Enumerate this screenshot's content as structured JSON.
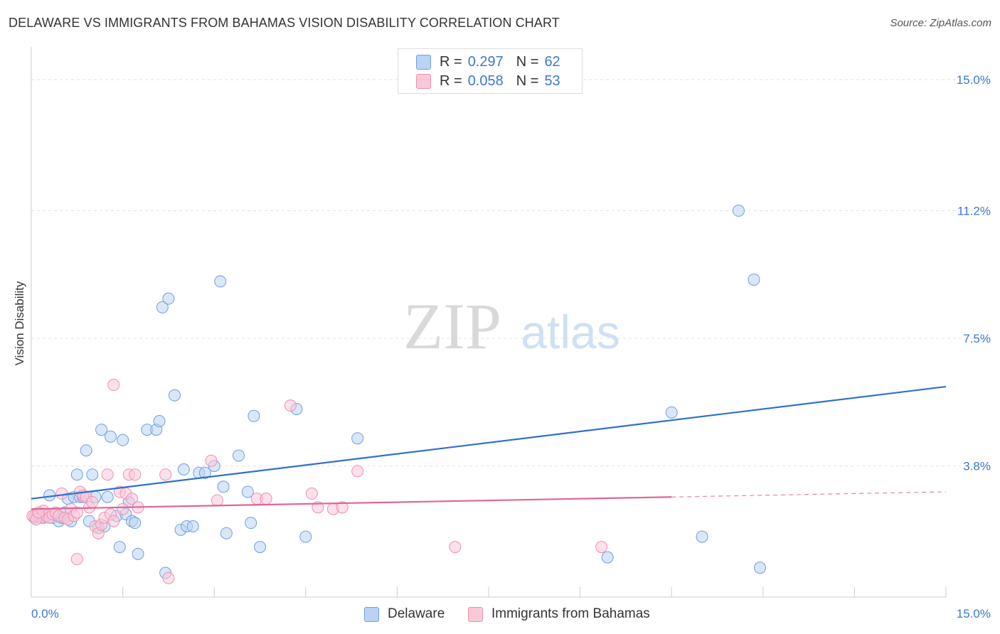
{
  "title": "DELAWARE VS IMMIGRANTS FROM BAHAMAS VISION DISABILITY CORRELATION CHART",
  "source": "Source: ZipAtlas.com",
  "watermark": {
    "zip": "ZIP",
    "atlas": "atlas"
  },
  "legend_top": [
    {
      "name": "Delaware",
      "r_label": "R =",
      "r_value": "0.297",
      "n_label": "N =",
      "n_value": "62",
      "color": "#a9c8f0"
    },
    {
      "name": "Immigrants from Bahamas",
      "r_label": "R =",
      "r_value": "0.058",
      "n_label": "N =",
      "n_value": "53",
      "color": "#f6b8cb"
    }
  ],
  "legend_bottom": {
    "series_1": "Delaware",
    "series_2": "Immigrants from Bahamas"
  },
  "chart_data": {
    "type": "scatter",
    "title": "DELAWARE VS IMMIGRANTS FROM BAHAMAS VISION DISABILITY CORRELATION CHART",
    "xlabel": "",
    "ylabel": "Vision Disability",
    "xlim": [
      0,
      15
    ],
    "ylim": [
      0,
      15.7
    ],
    "x_tick_labels": [
      "0.0%",
      "15.0%"
    ],
    "y_ticks": [
      3.8,
      7.5,
      11.2,
      15.0
    ],
    "y_tick_labels": [
      "3.8%",
      "7.5%",
      "11.2%",
      "15.0%"
    ],
    "grid": true,
    "series": [
      {
        "name": "Delaware",
        "color": "#6f9fe0",
        "fill": "#b9d3f3",
        "line_color": "#2f6fd0",
        "trend": {
          "x0": 0.0,
          "y0": 2.85,
          "x1": 15.0,
          "y1": 6.1,
          "dashed_from": null
        },
        "points": [
          [
            0.05,
            2.3
          ],
          [
            0.1,
            2.35
          ],
          [
            0.2,
            2.3
          ],
          [
            0.3,
            2.95
          ],
          [
            0.35,
            2.3
          ],
          [
            0.4,
            2.4
          ],
          [
            0.45,
            2.2
          ],
          [
            0.5,
            2.3
          ],
          [
            0.55,
            2.45
          ],
          [
            0.6,
            2.85
          ],
          [
            0.65,
            2.2
          ],
          [
            0.7,
            2.9
          ],
          [
            0.75,
            3.55
          ],
          [
            0.8,
            2.9
          ],
          [
            0.85,
            2.9
          ],
          [
            0.9,
            4.25
          ],
          [
            0.95,
            2.2
          ],
          [
            1.0,
            3.55
          ],
          [
            1.05,
            2.9
          ],
          [
            1.1,
            2.0
          ],
          [
            1.15,
            4.85
          ],
          [
            1.2,
            2.05
          ],
          [
            1.25,
            2.9
          ],
          [
            1.3,
            4.65
          ],
          [
            1.4,
            2.35
          ],
          [
            1.45,
            1.45
          ],
          [
            1.5,
            4.55
          ],
          [
            1.55,
            2.4
          ],
          [
            1.6,
            2.75
          ],
          [
            1.65,
            2.2
          ],
          [
            1.7,
            2.15
          ],
          [
            1.75,
            1.25
          ],
          [
            1.9,
            4.85
          ],
          [
            2.05,
            4.85
          ],
          [
            2.1,
            5.1
          ],
          [
            2.15,
            8.4
          ],
          [
            2.2,
            0.7
          ],
          [
            2.25,
            8.65
          ],
          [
            2.35,
            5.85
          ],
          [
            2.45,
            1.95
          ],
          [
            2.5,
            3.7
          ],
          [
            2.55,
            2.05
          ],
          [
            2.65,
            2.05
          ],
          [
            2.75,
            3.6
          ],
          [
            2.85,
            3.6
          ],
          [
            3.0,
            3.8
          ],
          [
            3.1,
            9.15
          ],
          [
            3.15,
            3.2
          ],
          [
            3.2,
            1.85
          ],
          [
            3.4,
            4.1
          ],
          [
            3.55,
            3.05
          ],
          [
            3.6,
            2.15
          ],
          [
            3.65,
            5.25
          ],
          [
            3.75,
            1.45
          ],
          [
            4.35,
            5.45
          ],
          [
            4.5,
            1.75
          ],
          [
            5.35,
            4.6
          ],
          [
            10.5,
            5.35
          ],
          [
            11.0,
            1.75
          ],
          [
            11.6,
            11.2
          ],
          [
            11.85,
            9.2
          ],
          [
            11.95,
            0.85
          ],
          [
            9.45,
            1.15
          ]
        ]
      },
      {
        "name": "Immigrants from Bahamas",
        "color": "#ee8fb0",
        "fill": "#f9c9d8",
        "line_color": "#e0649a",
        "trend": {
          "x0": 0.0,
          "y0": 2.55,
          "x1": 15.0,
          "y1": 3.05,
          "dashed_from": 10.5
        },
        "points": [
          [
            0.05,
            2.35
          ],
          [
            0.1,
            2.4
          ],
          [
            0.15,
            2.3
          ],
          [
            0.2,
            2.5
          ],
          [
            0.25,
            2.35
          ],
          [
            0.3,
            2.3
          ],
          [
            0.35,
            2.4
          ],
          [
            0.4,
            2.45
          ],
          [
            0.45,
            2.35
          ],
          [
            0.5,
            3.0
          ],
          [
            0.55,
            2.3
          ],
          [
            0.6,
            2.25
          ],
          [
            0.65,
            2.55
          ],
          [
            0.7,
            2.35
          ],
          [
            0.75,
            2.45
          ],
          [
            0.8,
            3.05
          ],
          [
            0.85,
            2.95
          ],
          [
            0.9,
            2.9
          ],
          [
            0.95,
            2.6
          ],
          [
            1.0,
            2.75
          ],
          [
            1.05,
            2.05
          ],
          [
            1.1,
            1.85
          ],
          [
            1.15,
            2.1
          ],
          [
            1.2,
            2.3
          ],
          [
            1.25,
            3.55
          ],
          [
            1.3,
            2.4
          ],
          [
            1.35,
            2.2
          ],
          [
            1.45,
            3.05
          ],
          [
            1.5,
            2.55
          ],
          [
            1.55,
            3.0
          ],
          [
            1.6,
            3.55
          ],
          [
            1.65,
            2.85
          ],
          [
            1.7,
            3.55
          ],
          [
            1.75,
            2.6
          ],
          [
            0.75,
            1.1
          ],
          [
            1.35,
            6.15
          ],
          [
            2.2,
            3.55
          ],
          [
            2.25,
            0.55
          ],
          [
            2.95,
            3.95
          ],
          [
            3.05,
            2.8
          ],
          [
            3.7,
            2.85
          ],
          [
            3.85,
            2.85
          ],
          [
            4.25,
            5.55
          ],
          [
            4.6,
            3.0
          ],
          [
            4.7,
            2.6
          ],
          [
            4.95,
            2.55
          ],
          [
            5.1,
            2.6
          ],
          [
            5.35,
            3.65
          ],
          [
            6.95,
            1.45
          ],
          [
            9.35,
            1.45
          ],
          [
            0.02,
            2.35
          ],
          [
            0.08,
            2.25
          ],
          [
            0.12,
            2.45
          ]
        ]
      }
    ]
  }
}
